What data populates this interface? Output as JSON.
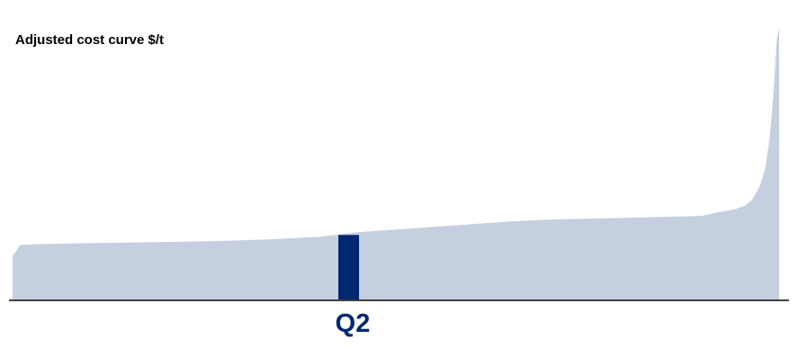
{
  "chart_data": {
    "type": "area",
    "title": "Adjusted cost curve $/t",
    "xlabel": "",
    "ylabel": "",
    "grid": false,
    "legend": false,
    "x": [
      0,
      1,
      4,
      10,
      18,
      25,
      33,
      40,
      45,
      50,
      55,
      60,
      65,
      70,
      75,
      80,
      85,
      90,
      92,
      94,
      95.5,
      96.5,
      97.5,
      98.2,
      98.8,
      99.3,
      99.7,
      100
    ],
    "values": [
      48,
      60,
      61,
      62,
      63,
      64,
      66,
      69,
      74,
      77,
      80,
      83,
      86,
      88,
      89,
      90,
      91,
      92,
      96,
      99,
      103,
      110,
      125,
      145,
      180,
      230,
      285,
      300
    ],
    "ylim": [
      0,
      320
    ],
    "highlight": {
      "label": "Q2",
      "x_start": 42.5,
      "x_end": 45.2,
      "value": 71
    }
  },
  "colors": {
    "fill": "#c5cfe0",
    "highlight": "#002771",
    "axis": "#000000",
    "label": "#002771"
  }
}
